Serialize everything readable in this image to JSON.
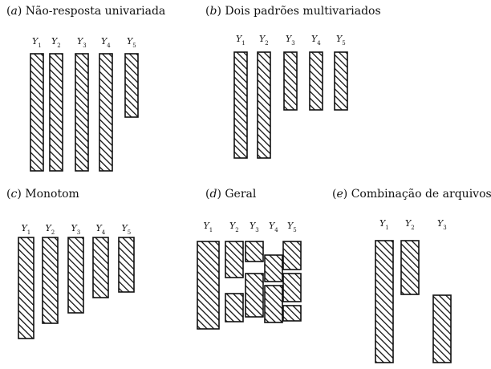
{
  "panels": {
    "a": {
      "letter": "a",
      "title": "Não-resposta univariada",
      "vars": [
        "1",
        "2",
        "3",
        "4",
        "5"
      ]
    },
    "b": {
      "letter": "b",
      "title": "Dois padrões multivariados",
      "vars": [
        "1",
        "2",
        "3",
        "4",
        "5"
      ]
    },
    "c": {
      "letter": "c",
      "title": "Monotom",
      "vars": [
        "1",
        "2",
        "3",
        "4",
        "5"
      ]
    },
    "d": {
      "letter": "d",
      "title": "Geral",
      "vars": [
        "1",
        "2",
        "3",
        "4",
        "5"
      ]
    },
    "e": {
      "letter": "e",
      "title": "Combinação de arquivos",
      "vars": [
        "1",
        "2",
        "3"
      ]
    }
  },
  "var_symbol": "Y",
  "style": {
    "stroke": "#111111",
    "hatch": "#111111",
    "fill": "#ffffff"
  }
}
